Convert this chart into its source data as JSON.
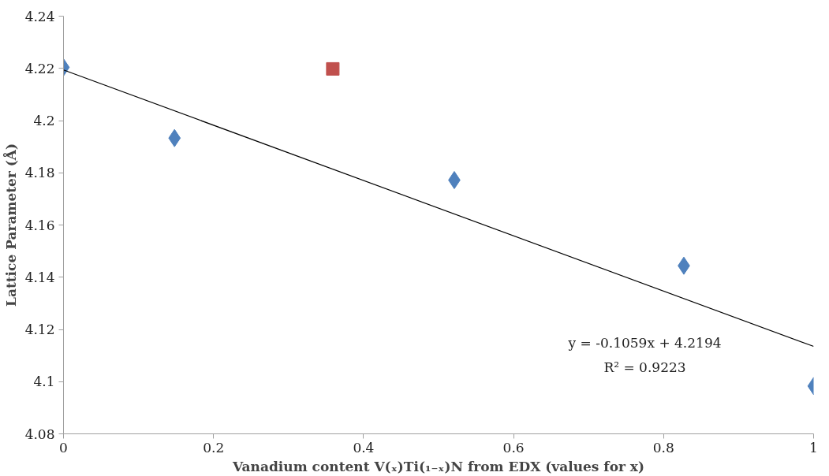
{
  "chart_data": {
    "type": "scatter",
    "xlabel": "Vanadium content V(ₓ)Ti(₁₋ₓ)N from EDX (values for x)",
    "ylabel": "Lattice Parameter (Å)",
    "series": [
      {
        "marker": "diamond",
        "color": "#4f81bd",
        "x": [
          0,
          0.148,
          0.521,
          0.827,
          1
        ],
        "values": [
          4.2204,
          4.1933,
          4.1772,
          4.1444,
          4.0983
        ]
      },
      {
        "marker": "square",
        "color": "#c0504d",
        "x": [
          0.359
        ],
        "values": [
          4.2198
        ]
      },
      {
        "type": "line",
        "marker": "none",
        "line_style": "solid",
        "color": "#000000",
        "x": [
          0,
          1
        ],
        "values": [
          4.2194,
          4.1135
        ]
      }
    ],
    "annotations": [
      "y = -0.1059x + 4.2194",
      "R² = 0.9223"
    ],
    "xlim": [
      0,
      1
    ],
    "xticks": [
      0,
      0.2,
      0.4,
      0.6,
      0.8,
      1
    ],
    "ylim": [
      4.08,
      4.24
    ],
    "yticks": [
      4.08,
      4.1,
      4.12,
      4.14,
      4.16,
      4.18,
      4.2,
      4.22,
      4.24
    ],
    "grid": false
  }
}
